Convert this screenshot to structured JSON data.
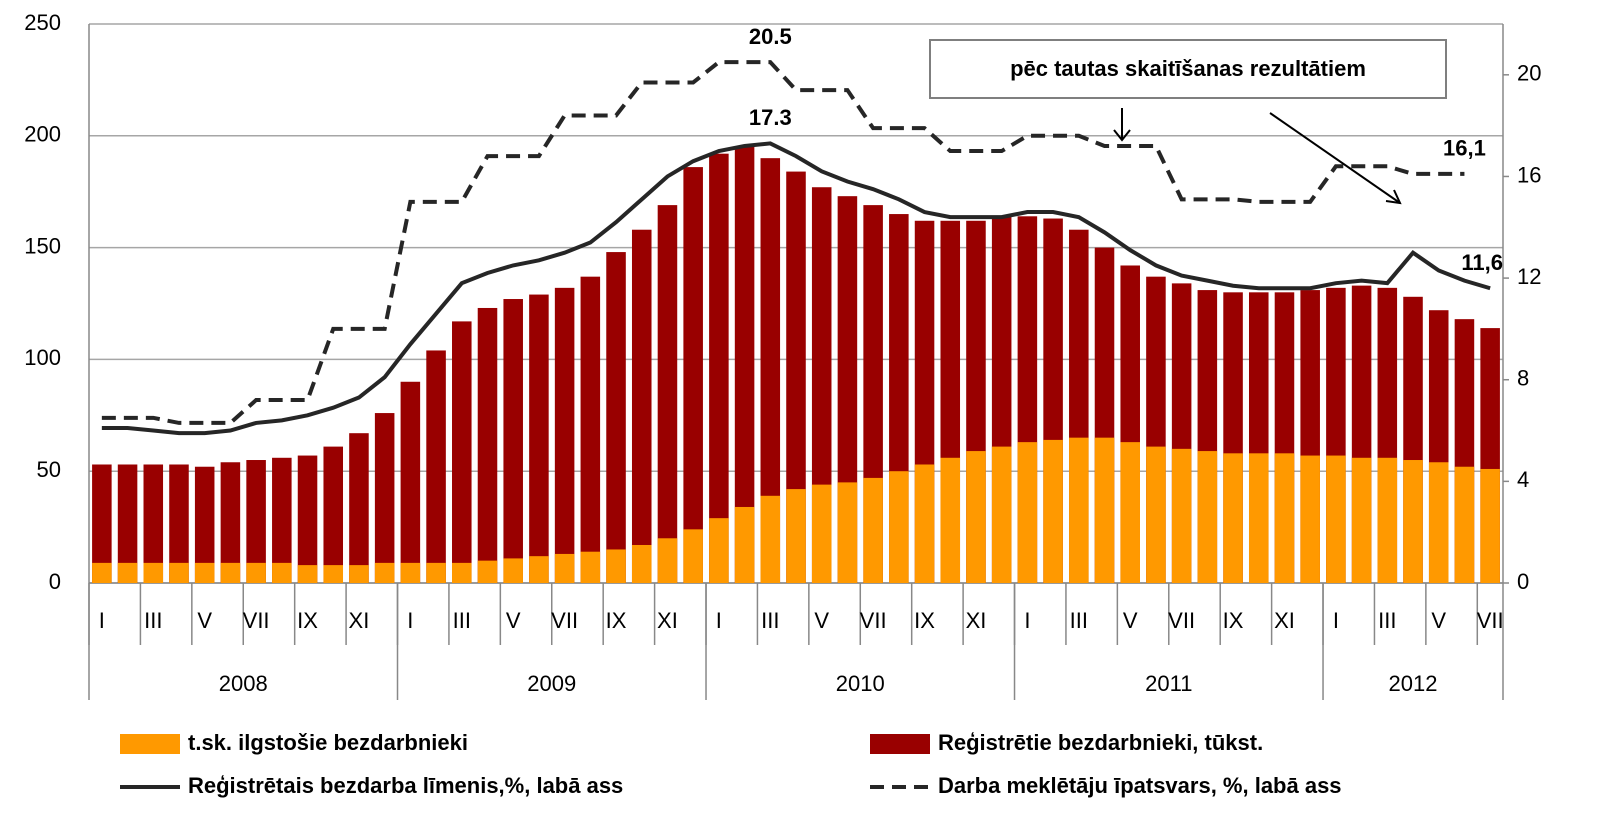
{
  "chart_data": {
    "type": "bar",
    "categories": [
      "I",
      null,
      "III",
      null,
      "V",
      null,
      "VII",
      null,
      "IX",
      null,
      "XI",
      null,
      "I",
      null,
      "III",
      null,
      "V",
      null,
      "VII",
      null,
      "IX",
      null,
      "XI",
      null,
      "I",
      null,
      "III",
      null,
      "V",
      null,
      "VII",
      null,
      "IX",
      null,
      "XI",
      null,
      "I",
      null,
      "III",
      null,
      "V",
      null,
      "VII",
      null,
      "IX",
      null,
      "XI",
      null,
      "I",
      null,
      "III",
      null,
      "V",
      null,
      "VII"
    ],
    "years": [
      "2008",
      "2009",
      "2010",
      "2011",
      "2012"
    ],
    "series": [
      {
        "name": "t.sk. ilgstošie bezdarbnieki",
        "type": "bar",
        "color": "#ff9900",
        "values": [
          9,
          9,
          9,
          9,
          9,
          9,
          9,
          9,
          8,
          8,
          8,
          9,
          9,
          9,
          9,
          10,
          11,
          12,
          13,
          14,
          15,
          17,
          20,
          24,
          29,
          34,
          39,
          42,
          44,
          45,
          47,
          50,
          53,
          56,
          59,
          61,
          63,
          64,
          65,
          65,
          63,
          61,
          60,
          59,
          58,
          58,
          58,
          57,
          57,
          56,
          56,
          55,
          54,
          52,
          51
        ]
      },
      {
        "name": "Reģistrētie bezdarbnieki, tūkst.",
        "type": "bar",
        "color": "#990000",
        "values": [
          53,
          53,
          53,
          53,
          52,
          54,
          55,
          56,
          57,
          61,
          67,
          76,
          90,
          104,
          117,
          123,
          127,
          129,
          132,
          137,
          148,
          158,
          169,
          186,
          192,
          195,
          190,
          184,
          177,
          173,
          169,
          165,
          162,
          162,
          162,
          164,
          164,
          163,
          158,
          150,
          142,
          137,
          134,
          131,
          130,
          130,
          130,
          131,
          132,
          133,
          132,
          128,
          122,
          118,
          114
        ]
      },
      {
        "name": "Reģistrētais bezdarba līmenis,%, labā ass",
        "type": "line",
        "style": "solid",
        "axis": "y2",
        "color": "#262626",
        "values": [
          6.1,
          6.1,
          6.0,
          5.9,
          5.9,
          6.0,
          6.3,
          6.4,
          6.6,
          6.9,
          7.3,
          8.1,
          9.4,
          10.6,
          11.8,
          12.2,
          12.5,
          12.7,
          13.0,
          13.4,
          14.2,
          15.1,
          16.0,
          16.6,
          17.0,
          17.2,
          17.3,
          16.8,
          16.2,
          15.8,
          15.5,
          15.1,
          14.6,
          14.4,
          14.4,
          14.4,
          14.6,
          14.6,
          14.4,
          13.8,
          13.1,
          12.5,
          12.1,
          11.9,
          11.7,
          11.6,
          11.6,
          11.6,
          11.8,
          11.9,
          11.8,
          13.0,
          12.3,
          11.9,
          11.6
        ],
        "value_labels": [
          null,
          null,
          null,
          null,
          null,
          null,
          null,
          null,
          null,
          null,
          null,
          null,
          null,
          null,
          null,
          null,
          null,
          null,
          null,
          null,
          null,
          null,
          null,
          null,
          null,
          null,
          "17.3",
          null,
          null,
          null,
          null,
          null,
          null,
          null,
          null,
          null,
          null,
          null,
          null,
          null,
          null,
          null,
          null,
          null,
          null,
          null,
          null,
          null,
          null,
          null,
          null,
          null,
          null,
          null,
          "11,6"
        ]
      },
      {
        "name": "Darba meklētāju īpatsvars, %, labā ass",
        "type": "line",
        "style": "dashed",
        "axis": "y2",
        "color": "#262626",
        "values": [
          6.5,
          6.5,
          6.5,
          6.3,
          6.3,
          6.3,
          7.2,
          7.2,
          7.2,
          10.0,
          10.0,
          10.0,
          15.0,
          15.0,
          15.0,
          16.8,
          16.8,
          16.8,
          18.4,
          18.4,
          18.4,
          19.7,
          19.7,
          19.7,
          20.5,
          20.5,
          20.5,
          19.4,
          19.4,
          19.4,
          17.9,
          17.9,
          17.9,
          17.0,
          17.0,
          17.0,
          17.6,
          17.6,
          17.6,
          17.2,
          17.2,
          17.2,
          15.1,
          15.1,
          15.1,
          15.0,
          15.0,
          15.0,
          16.4,
          16.4,
          16.4,
          16.1,
          16.1,
          16.1,
          null
        ],
        "value_labels": [
          null,
          null,
          null,
          null,
          null,
          null,
          null,
          null,
          null,
          null,
          null,
          null,
          null,
          null,
          null,
          null,
          null,
          null,
          null,
          null,
          null,
          null,
          null,
          null,
          null,
          null,
          "20.5",
          null,
          null,
          null,
          null,
          null,
          null,
          null,
          null,
          null,
          null,
          null,
          null,
          null,
          null,
          null,
          null,
          null,
          null,
          null,
          null,
          null,
          null,
          null,
          null,
          null,
          null,
          "16,1",
          null
        ]
      }
    ],
    "annotations": [
      "pēc  tautas skaitīšanas rezultātiem"
    ],
    "ylim": [
      0,
      250
    ],
    "yticks": [
      0,
      50,
      100,
      150,
      200,
      250
    ],
    "y2lim": [
      0,
      22
    ],
    "y2ticks": [
      0,
      4,
      8,
      12,
      16,
      20
    ],
    "grid": true
  }
}
